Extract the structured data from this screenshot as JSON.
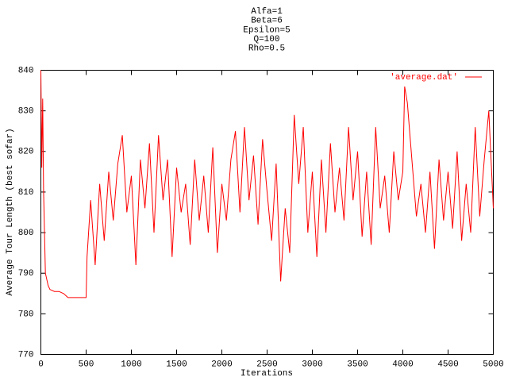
{
  "chart_data": {
    "type": "line",
    "title_lines": [
      "Alfa=1",
      "Beta=6",
      "Epsilon=5",
      "Q=100",
      "Rho=0.5"
    ],
    "x_label": "Iterations",
    "y_label": "Average Tour Length (best sofar)",
    "legend_position": "top-right",
    "x": [
      0,
      10,
      20,
      30,
      40,
      50,
      80,
      100,
      150,
      200,
      250,
      300,
      350,
      400,
      450,
      500,
      510,
      550,
      600,
      650,
      700,
      750,
      800,
      850,
      900,
      950,
      1000,
      1050,
      1100,
      1150,
      1200,
      1250,
      1300,
      1350,
      1400,
      1450,
      1500,
      1550,
      1600,
      1650,
      1700,
      1750,
      1800,
      1850,
      1900,
      1950,
      2000,
      2050,
      2100,
      2150,
      2200,
      2250,
      2300,
      2350,
      2400,
      2450,
      2500,
      2550,
      2600,
      2650,
      2700,
      2750,
      2800,
      2850,
      2900,
      2950,
      3000,
      3050,
      3100,
      3150,
      3200,
      3250,
      3300,
      3350,
      3400,
      3450,
      3500,
      3550,
      3600,
      3650,
      3700,
      3750,
      3800,
      3850,
      3900,
      3950,
      4000,
      4020,
      4050,
      4100,
      4150,
      4200,
      4250,
      4300,
      4350,
      4400,
      4450,
      4500,
      4550,
      4600,
      4650,
      4700,
      4750,
      4800,
      4850,
      4900,
      4950,
      5000
    ],
    "series": [
      {
        "name": "'average.dat'",
        "color": "#ff0000",
        "values": [
          840,
          816,
          833,
          810,
          800,
          790,
          787,
          786,
          785.5,
          785.5,
          785,
          784,
          784,
          784,
          784,
          784,
          794,
          808,
          792,
          812,
          798,
          815,
          803,
          817,
          824,
          805,
          814,
          792,
          818,
          806,
          822,
          800,
          824,
          808,
          818,
          794,
          816,
          805,
          812,
          797,
          818,
          803,
          814,
          800,
          821,
          795,
          812,
          803,
          818,
          825,
          805,
          826,
          808,
          819,
          802,
          823,
          810,
          798,
          817,
          788,
          806,
          795,
          829,
          812,
          826,
          800,
          815,
          794,
          818,
          800,
          822,
          805,
          816,
          803,
          826,
          808,
          820,
          799,
          815,
          797,
          826,
          806,
          814,
          800,
          820,
          808,
          815,
          836,
          832,
          818,
          804,
          812,
          800,
          815,
          796,
          818,
          803,
          815,
          801,
          820,
          798,
          812,
          800,
          826,
          804,
          818,
          830,
          806
        ]
      }
    ],
    "xlim": [
      0,
      5000
    ],
    "xticks": [
      0,
      500,
      1000,
      1500,
      2000,
      2500,
      3000,
      3500,
      4000,
      4500,
      5000
    ],
    "ylim": [
      770,
      840
    ],
    "yticks": [
      770,
      780,
      790,
      800,
      810,
      820,
      830,
      840
    ],
    "grid": false
  }
}
